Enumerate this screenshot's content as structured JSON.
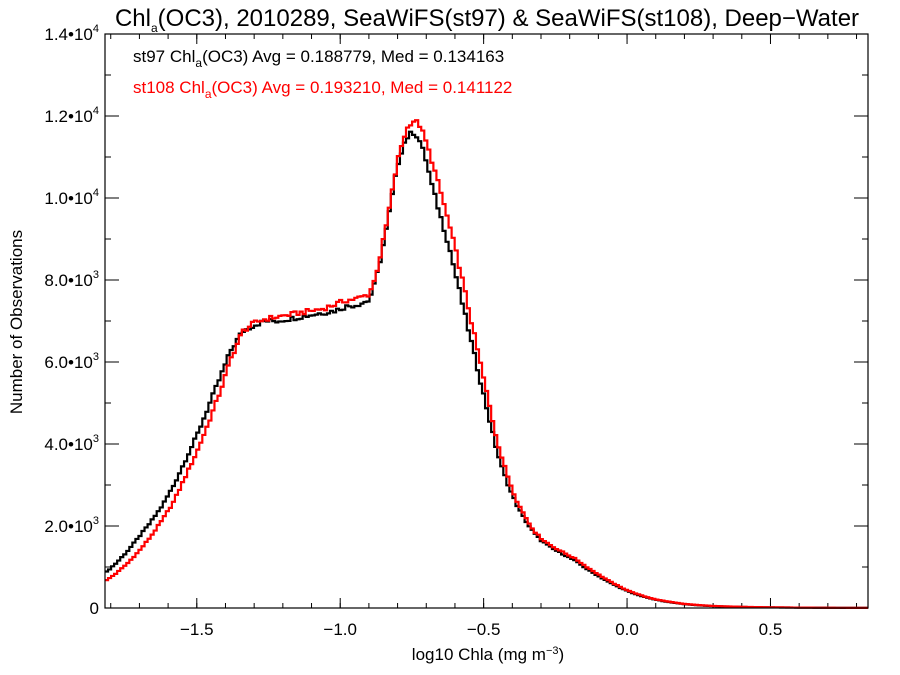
{
  "chart_data": {
    "type": "line",
    "title": {
      "pre": "Chl",
      "sub": "a",
      "post": "(OC3), 2010289, SeaWiFS(st97) & SeaWiFS(st108), Deep−Water"
    },
    "xlabel": {
      "main": "log10 Chla (mg m",
      "sup": "−3",
      "close": ")"
    },
    "ylabel": "Number of Observations",
    "xlim": [
      -1.82,
      0.84
    ],
    "ylim": [
      0,
      14000
    ],
    "x_ticks": [
      {
        "value": -1.5,
        "label": "−1.5"
      },
      {
        "value": -1.0,
        "label": "−1.0"
      },
      {
        "value": -0.5,
        "label": "−0.5"
      },
      {
        "value": 0.0,
        "label": "0.0"
      },
      {
        "value": 0.5,
        "label": "0.5"
      }
    ],
    "y_ticks": [
      {
        "value": 0,
        "mant": "0",
        "exp": ""
      },
      {
        "value": 2000,
        "mant": "2.0•10",
        "exp": "3"
      },
      {
        "value": 4000,
        "mant": "4.0•10",
        "exp": "3"
      },
      {
        "value": 6000,
        "mant": "6.0•10",
        "exp": "3"
      },
      {
        "value": 8000,
        "mant": "8.0•10",
        "exp": "3"
      },
      {
        "value": 10000,
        "mant": "1.0•10",
        "exp": "4"
      },
      {
        "value": 12000,
        "mant": "1.2•10",
        "exp": "4"
      },
      {
        "value": 14000,
        "mant": "1.4•10",
        "exp": "4"
      }
    ],
    "x_minor_step": 0.1,
    "y_minor_step": 1000,
    "grid": false,
    "annotations": [
      {
        "pre": "st97 Chl",
        "sub": "a",
        "post": "(OC3) Avg = 0.188779, Med = 0.134163",
        "color": "#000000"
      },
      {
        "pre": "st108 Chl",
        "sub": "a",
        "post": "(OC3) Avg = 0.193210, Med = 0.141122",
        "color": "#ff0000"
      }
    ],
    "series": [
      {
        "color": "#000000",
        "points": [
          [
            -1.82,
            850
          ],
          [
            -1.78,
            1100
          ],
          [
            -1.74,
            1400
          ],
          [
            -1.7,
            1750
          ],
          [
            -1.66,
            2100
          ],
          [
            -1.62,
            2500
          ],
          [
            -1.58,
            3000
          ],
          [
            -1.54,
            3600
          ],
          [
            -1.5,
            4200
          ],
          [
            -1.46,
            4900
          ],
          [
            -1.42,
            5600
          ],
          [
            -1.38,
            6300
          ],
          [
            -1.34,
            6750
          ],
          [
            -1.3,
            6900
          ],
          [
            -1.26,
            7000
          ],
          [
            -1.22,
            7000
          ],
          [
            -1.18,
            7050
          ],
          [
            -1.14,
            7100
          ],
          [
            -1.1,
            7150
          ],
          [
            -1.06,
            7200
          ],
          [
            -1.02,
            7250
          ],
          [
            -0.98,
            7350
          ],
          [
            -0.94,
            7400
          ],
          [
            -0.9,
            7500
          ],
          [
            -0.88,
            7900
          ],
          [
            -0.86,
            8500
          ],
          [
            -0.84,
            9200
          ],
          [
            -0.82,
            10000
          ],
          [
            -0.8,
            10800
          ],
          [
            -0.78,
            11300
          ],
          [
            -0.76,
            11550
          ],
          [
            -0.74,
            11600
          ],
          [
            -0.72,
            11350
          ],
          [
            -0.7,
            10900
          ],
          [
            -0.68,
            10300
          ],
          [
            -0.66,
            9800
          ],
          [
            -0.64,
            9300
          ],
          [
            -0.62,
            8800
          ],
          [
            -0.6,
            8200
          ],
          [
            -0.58,
            7600
          ],
          [
            -0.56,
            7000
          ],
          [
            -0.54,
            6400
          ],
          [
            -0.52,
            5800
          ],
          [
            -0.5,
            5200
          ],
          [
            -0.48,
            4600
          ],
          [
            -0.46,
            4000
          ],
          [
            -0.44,
            3500
          ],
          [
            -0.42,
            3100
          ],
          [
            -0.4,
            2750
          ],
          [
            -0.38,
            2450
          ],
          [
            -0.36,
            2200
          ],
          [
            -0.34,
            1980
          ],
          [
            -0.32,
            1800
          ],
          [
            -0.3,
            1650
          ],
          [
            -0.26,
            1450
          ],
          [
            -0.22,
            1300
          ],
          [
            -0.18,
            1150
          ],
          [
            -0.14,
            950
          ],
          [
            -0.1,
            780
          ],
          [
            -0.06,
            620
          ],
          [
            -0.02,
            480
          ],
          [
            0.02,
            360
          ],
          [
            0.06,
            270
          ],
          [
            0.1,
            200
          ],
          [
            0.15,
            140
          ],
          [
            0.2,
            95
          ],
          [
            0.25,
            65
          ],
          [
            0.3,
            45
          ],
          [
            0.4,
            25
          ],
          [
            0.5,
            15
          ],
          [
            0.6,
            9
          ],
          [
            0.7,
            5
          ],
          [
            0.84,
            2
          ]
        ]
      },
      {
        "color": "#ff0000",
        "points": [
          [
            -1.82,
            650
          ],
          [
            -1.78,
            850
          ],
          [
            -1.74,
            1100
          ],
          [
            -1.7,
            1400
          ],
          [
            -1.66,
            1750
          ],
          [
            -1.62,
            2150
          ],
          [
            -1.58,
            2600
          ],
          [
            -1.54,
            3200
          ],
          [
            -1.5,
            3800
          ],
          [
            -1.46,
            4500
          ],
          [
            -1.42,
            5250
          ],
          [
            -1.38,
            6100
          ],
          [
            -1.34,
            6750
          ],
          [
            -1.3,
            6950
          ],
          [
            -1.26,
            7050
          ],
          [
            -1.22,
            7100
          ],
          [
            -1.18,
            7150
          ],
          [
            -1.14,
            7200
          ],
          [
            -1.1,
            7250
          ],
          [
            -1.06,
            7300
          ],
          [
            -1.02,
            7400
          ],
          [
            -0.98,
            7500
          ],
          [
            -0.94,
            7550
          ],
          [
            -0.9,
            7650
          ],
          [
            -0.88,
            8000
          ],
          [
            -0.86,
            8600
          ],
          [
            -0.84,
            9300
          ],
          [
            -0.82,
            10100
          ],
          [
            -0.8,
            10900
          ],
          [
            -0.78,
            11450
          ],
          [
            -0.76,
            11800
          ],
          [
            -0.74,
            11900
          ],
          [
            -0.72,
            11750
          ],
          [
            -0.7,
            11350
          ],
          [
            -0.68,
            10900
          ],
          [
            -0.66,
            10400
          ],
          [
            -0.64,
            9900
          ],
          [
            -0.62,
            9350
          ],
          [
            -0.6,
            8800
          ],
          [
            -0.58,
            8200
          ],
          [
            -0.56,
            7550
          ],
          [
            -0.54,
            6900
          ],
          [
            -0.52,
            6250
          ],
          [
            -0.5,
            5600
          ],
          [
            -0.48,
            4950
          ],
          [
            -0.46,
            4300
          ],
          [
            -0.44,
            3750
          ],
          [
            -0.42,
            3300
          ],
          [
            -0.4,
            2900
          ],
          [
            -0.38,
            2550
          ],
          [
            -0.36,
            2300
          ],
          [
            -0.34,
            2050
          ],
          [
            -0.32,
            1850
          ],
          [
            -0.3,
            1700
          ],
          [
            -0.26,
            1500
          ],
          [
            -0.22,
            1350
          ],
          [
            -0.18,
            1200
          ],
          [
            -0.14,
            1000
          ],
          [
            -0.1,
            820
          ],
          [
            -0.06,
            650
          ],
          [
            -0.02,
            500
          ],
          [
            0.02,
            380
          ],
          [
            0.06,
            285
          ],
          [
            0.1,
            210
          ],
          [
            0.15,
            150
          ],
          [
            0.2,
            100
          ],
          [
            0.25,
            70
          ],
          [
            0.3,
            50
          ],
          [
            0.4,
            28
          ],
          [
            0.5,
            17
          ],
          [
            0.6,
            10
          ],
          [
            0.7,
            6
          ],
          [
            0.84,
            2
          ]
        ]
      }
    ]
  }
}
